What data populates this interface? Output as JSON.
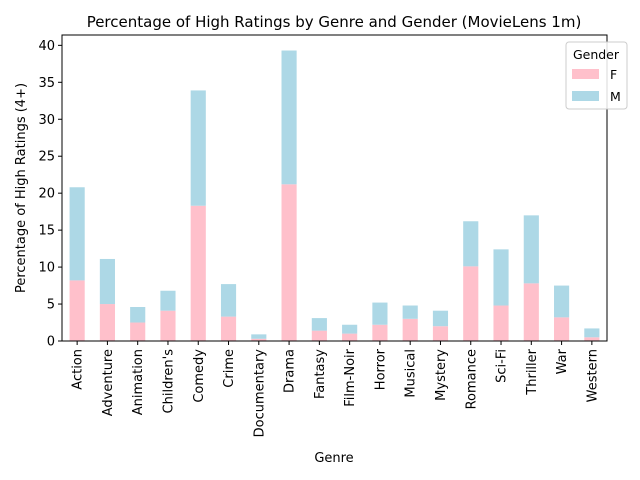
{
  "chart_data": {
    "type": "bar",
    "stacked": true,
    "title": "Percentage of High Ratings by Genre and Gender (MovieLens 1m)",
    "xlabel": "Genre",
    "ylabel": "Percentage of High Ratings (4+)",
    "ylim": [
      0,
      41.4
    ],
    "yticks": [
      0,
      5,
      10,
      15,
      20,
      25,
      30,
      35,
      40
    ],
    "grid": false,
    "legend": {
      "title": "Gender",
      "placement": "top-right"
    },
    "categories": [
      "Action",
      "Adventure",
      "Animation",
      "Children's",
      "Comedy",
      "Crime",
      "Documentary",
      "Drama",
      "Fantasy",
      "Film-Noir",
      "Horror",
      "Musical",
      "Mystery",
      "Romance",
      "Sci-Fi",
      "Thriller",
      "War",
      "Western"
    ],
    "series": [
      {
        "name": "F",
        "color": "#ffc0cb",
        "values": [
          8.2,
          5.0,
          2.5,
          4.1,
          18.3,
          3.3,
          0.3,
          21.2,
          1.4,
          1.0,
          2.2,
          3.0,
          2.0,
          10.1,
          4.8,
          7.8,
          3.2,
          0.5
        ]
      },
      {
        "name": "M",
        "color": "#add8e6",
        "values": [
          12.6,
          6.1,
          2.1,
          2.7,
          15.6,
          4.4,
          0.6,
          18.1,
          1.7,
          1.2,
          3.0,
          1.8,
          2.1,
          6.1,
          7.6,
          9.2,
          4.3,
          1.2
        ]
      }
    ]
  }
}
